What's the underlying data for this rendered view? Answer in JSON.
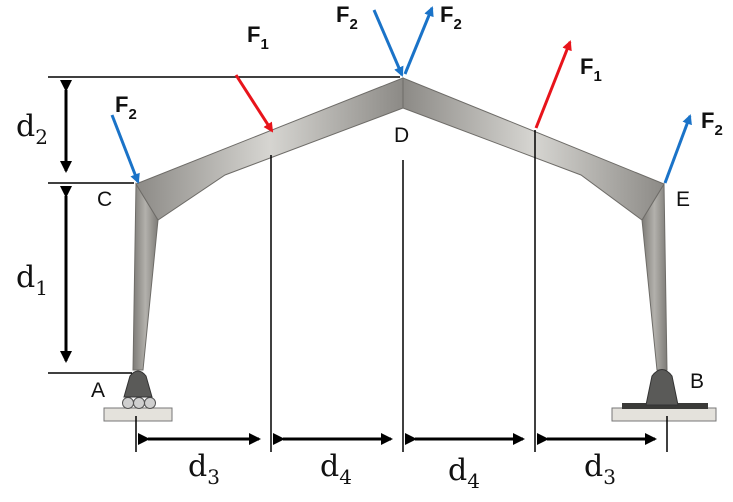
{
  "points": {
    "A": "A",
    "B": "B",
    "C": "C",
    "D": "D",
    "E": "E"
  },
  "forces": {
    "f1_left": {
      "main": "F",
      "sub": "1"
    },
    "f1_right": {
      "main": "F",
      "sub": "1"
    },
    "f2_top_in": {
      "main": "F",
      "sub": "2"
    },
    "f2_top_out": {
      "main": "F",
      "sub": "2"
    },
    "f2_left": {
      "main": "F",
      "sub": "2"
    },
    "f2_right": {
      "main": "F",
      "sub": "2"
    }
  },
  "dimensions": {
    "d1": {
      "main": "d",
      "sub": "1"
    },
    "d2": {
      "main": "d",
      "sub": "2"
    },
    "d3_left": {
      "main": "d",
      "sub": "3"
    },
    "d4_left": {
      "main": "d",
      "sub": "4"
    },
    "d4_right": {
      "main": "d",
      "sub": "4"
    },
    "d3_right": {
      "main": "d",
      "sub": "3"
    }
  },
  "colors": {
    "red_arrow": "#e8141b",
    "blue_arrow": "#1a73c8",
    "frame": "#9a9893",
    "support": "#5a5a58"
  }
}
